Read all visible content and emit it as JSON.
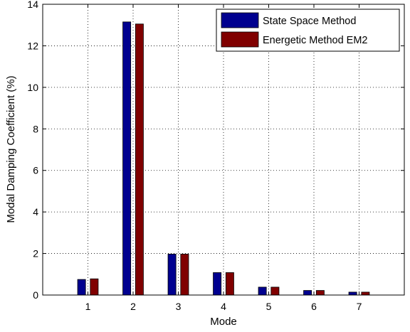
{
  "chart_data": {
    "type": "bar",
    "categories": [
      "1",
      "2",
      "3",
      "4",
      "5",
      "6",
      "7"
    ],
    "series": [
      {
        "name": "State Space Method",
        "color": "#00008f",
        "values": [
          0.75,
          13.15,
          1.97,
          1.08,
          0.38,
          0.22,
          0.14
        ]
      },
      {
        "name": "Energetic Method EM2",
        "color": "#800000",
        "values": [
          0.78,
          13.05,
          1.97,
          1.08,
          0.38,
          0.22,
          0.14
        ]
      }
    ],
    "xlabel": "Mode",
    "ylabel": "Modal Damping Coefficient (%)",
    "xlim": [
      0,
      8
    ],
    "ylim": [
      0,
      14
    ],
    "yticks": [
      0,
      2,
      4,
      6,
      8,
      10,
      12,
      14
    ],
    "grid": true,
    "legend_position": "top-right"
  }
}
